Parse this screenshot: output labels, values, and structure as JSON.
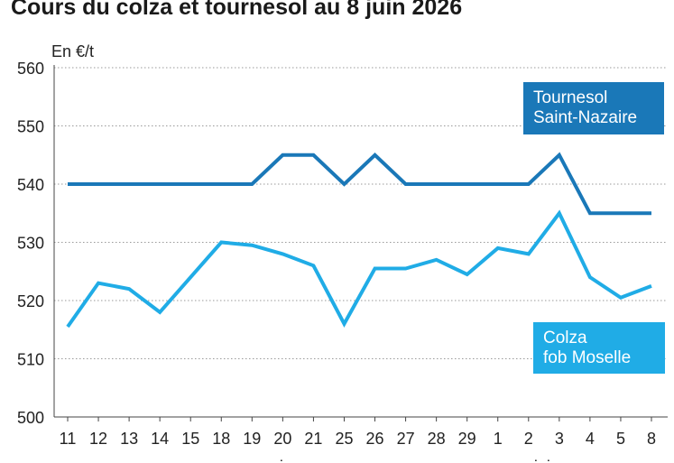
{
  "title": "Cours du colza et tournesol au 8 juin 2026",
  "chart_data": {
    "type": "line",
    "ylabel": "En €/t",
    "ylim": [
      500,
      560
    ],
    "yticks": [
      500,
      510,
      520,
      530,
      540,
      550,
      560
    ],
    "grid": true,
    "categories": [
      "11",
      "12",
      "13",
      "14",
      "15",
      "18",
      "19",
      "20",
      "21",
      "25",
      "26",
      "27",
      "28",
      "29",
      "1",
      "2",
      "3",
      "4",
      "5",
      "8"
    ],
    "month_labels": [
      {
        "label": "mai",
        "at_index": 7
      },
      {
        "label": "juin",
        "at_index": 16
      }
    ],
    "series": [
      {
        "name": "Tournesol Saint-Nazaire",
        "label_lines": [
          "Tournesol",
          "Saint-Nazaire"
        ],
        "color": "#1a78b8",
        "values": [
          540,
          540,
          540,
          540,
          540,
          540,
          540,
          545,
          545,
          540,
          545,
          540,
          540,
          540,
          540,
          540,
          545,
          535,
          535,
          535
        ]
      },
      {
        "name": "Colza fob Moselle",
        "label_lines": [
          "Colza",
          "fob Moselle"
        ],
        "color": "#20ace6",
        "values": [
          515.5,
          523,
          522,
          518,
          524,
          530,
          529.5,
          528,
          526,
          516,
          525.5,
          525.5,
          527,
          524.5,
          529,
          528,
          535,
          524,
          520.5,
          522.5
        ]
      }
    ]
  }
}
